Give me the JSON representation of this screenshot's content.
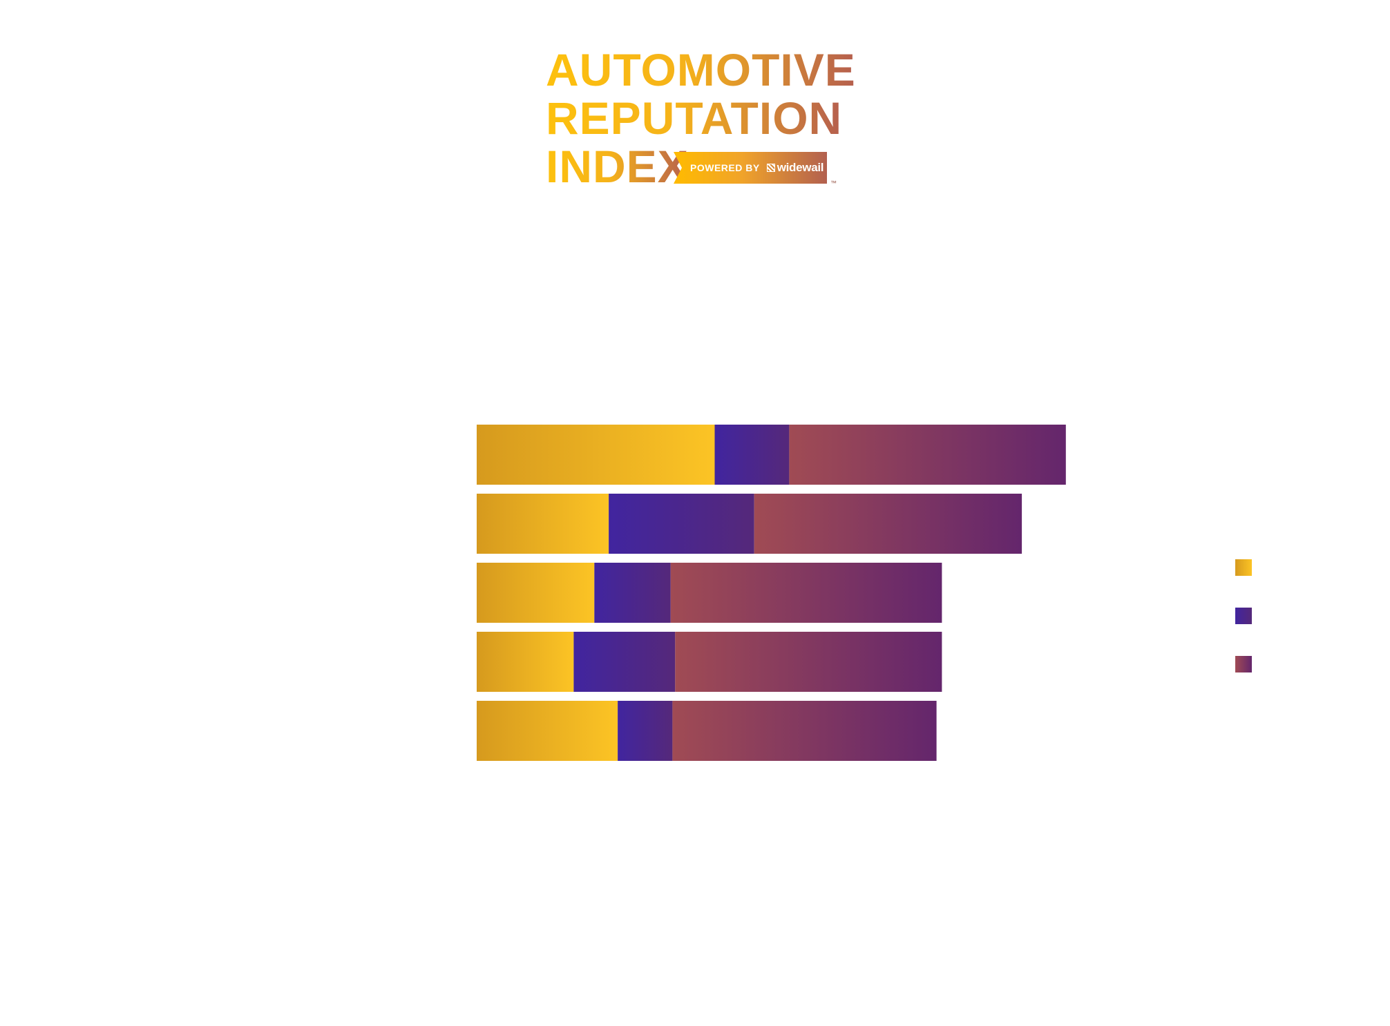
{
  "logo": {
    "line1": "AUTOMOTIVE",
    "line2": "REPUTATION",
    "line3": "INDEX",
    "powered_by": "POWERED BY",
    "brand": "widewail",
    "trademark": "™"
  },
  "chart_data": {
    "type": "bar",
    "orientation": "horizontal",
    "stacked": true,
    "title": "",
    "xlabel": "",
    "ylabel": "",
    "xlim": [
      0,
      100
    ],
    "grid": false,
    "legend_position": "right",
    "categories": [
      "",
      "",
      "",
      "",
      ""
    ],
    "series": [
      {
        "values": [
          26.5,
          14.7,
          13.1,
          10.8,
          15.7
        ],
        "color": "#fac020"
      },
      {
        "values": [
          8.3,
          16.2,
          8.5,
          11.3,
          6.1
        ],
        "color": "#4526a0"
      },
      {
        "values": [
          30.8,
          29.8,
          30.2,
          29.7,
          29.4
        ],
        "color": "#8f3f5f"
      }
    ],
    "gradients": [
      [
        "#d69a1e",
        "#fcc425"
      ],
      [
        "#41259f",
        "#55287a"
      ],
      [
        "#a04b54",
        "#64266c"
      ]
    ]
  }
}
